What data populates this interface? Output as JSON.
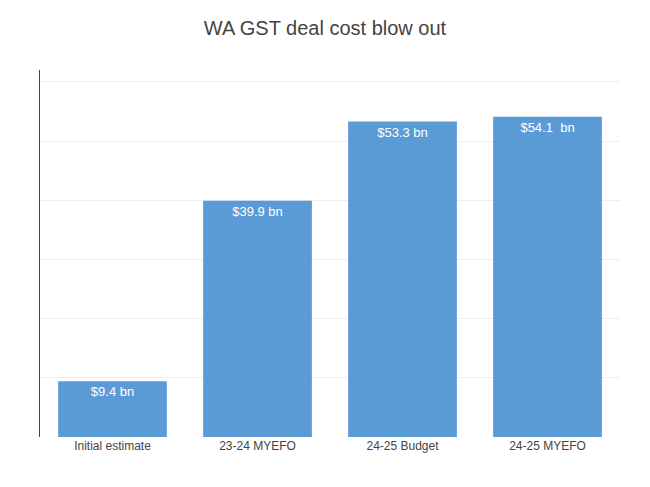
{
  "chart_data": {
    "type": "bar",
    "title": "WA GST deal cost blow out",
    "categories": [
      "Initial estimate",
      "23-24 MYEFO",
      "24-25 Budget",
      "24-25 MYEFO"
    ],
    "values": [
      9.4,
      39.9,
      53.3,
      54.1
    ],
    "value_labels": [
      "$9.4 bn",
      "$39.9 bn",
      "$53.3 bn",
      "$54.1  bn"
    ],
    "data_labels": true,
    "color": "#5b9bd5",
    "ylim": [
      0,
      62
    ],
    "yticks": [
      0,
      10,
      20,
      30,
      40,
      50,
      60
    ],
    "grid": true,
    "tick_labels": "x"
  }
}
